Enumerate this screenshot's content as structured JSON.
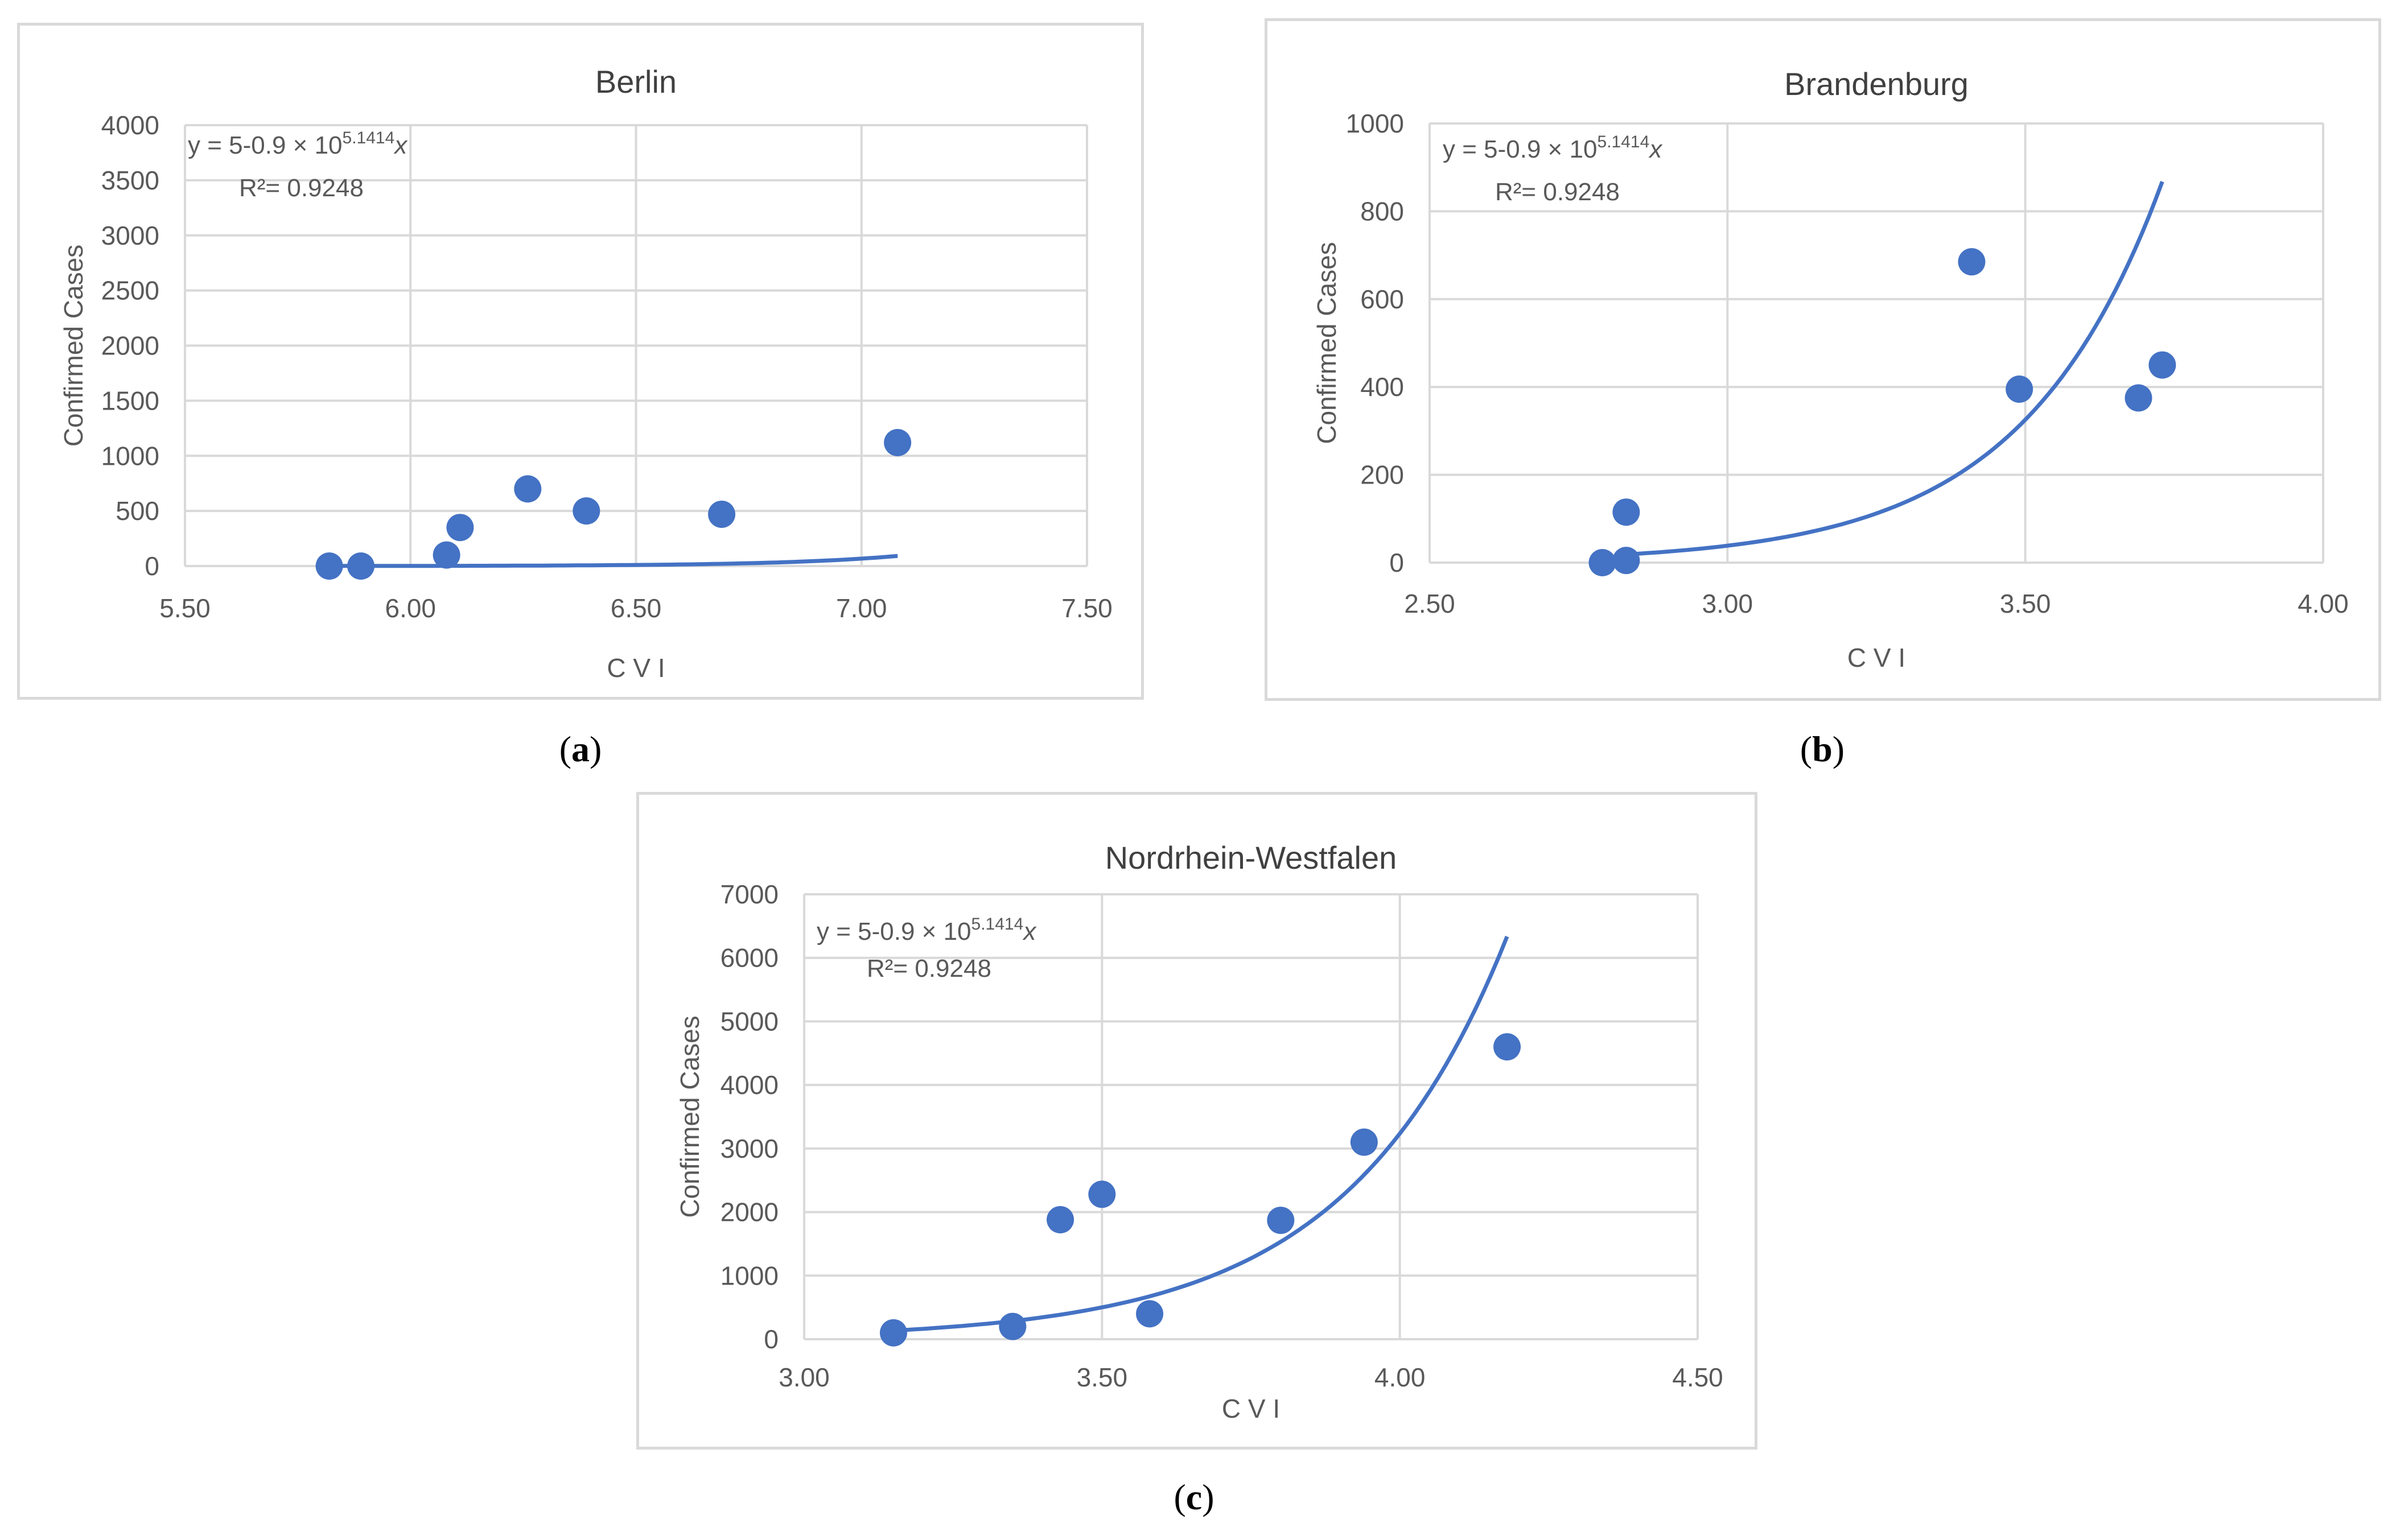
{
  "colors": {
    "series": "#4472c4",
    "grid": "#d9d9d9",
    "text": "#595959",
    "title": "#404040"
  },
  "captions": [
    "a",
    "b",
    "c"
  ],
  "chart_data": [
    {
      "type": "scatter",
      "title": "Berlin",
      "xlabel": "C V I",
      "ylabel": "Confirmed Cases",
      "xlim": [
        5.5,
        7.5
      ],
      "ylim": [
        0,
        4000
      ],
      "xticks": [
        "5.50",
        "6.00",
        "6.50",
        "7.00",
        "7.50"
      ],
      "yticks": [
        "0",
        "500",
        "1000",
        "1500",
        "2000",
        "2500",
        "3000",
        "3500",
        "4000"
      ],
      "equation": {
        "base": "y = 5-0.9 × 10",
        "exp": "5.1414",
        "var": "x",
        "r2": "R²= 0.9248"
      },
      "points": [
        [
          5.82,
          0
        ],
        [
          5.89,
          0
        ],
        [
          6.08,
          100
        ],
        [
          6.11,
          350
        ],
        [
          6.26,
          700
        ],
        [
          6.39,
          500
        ],
        [
          6.69,
          470
        ],
        [
          7.08,
          1120
        ]
      ],
      "trend": {
        "a": 1.2e-10,
        "b": 3.865,
        "x0": 5.82,
        "x1": 7.08
      }
    },
    {
      "type": "scatter",
      "title": "Brandenburg",
      "xlabel": "C V I",
      "ylabel": "Confirmed Cases",
      "xlim": [
        2.5,
        4.0
      ],
      "ylim": [
        0,
        1000
      ],
      "xticks": [
        "2.50",
        "3.00",
        "3.50",
        "4.00"
      ],
      "yticks": [
        "0",
        "200",
        "400",
        "600",
        "800",
        "1000"
      ],
      "equation": {
        "base": "y = 5-0.9 × 10",
        "exp": "5.1414",
        "var": "x",
        "r2": "R²= 0.9248"
      },
      "points": [
        [
          2.79,
          0
        ],
        [
          2.83,
          5
        ],
        [
          2.83,
          115
        ],
        [
          3.41,
          685
        ],
        [
          3.49,
          395
        ],
        [
          3.69,
          375
        ],
        [
          3.73,
          450
        ]
      ],
      "trend": {
        "a": 0.000107,
        "b": 4.265,
        "x0": 2.83,
        "x1": 3.73
      }
    },
    {
      "type": "scatter",
      "title": "Nordrhein-Westfalen",
      "xlabel": "C V I",
      "ylabel": "Confirmed Cases",
      "xlim": [
        3.0,
        4.5
      ],
      "ylim": [
        0,
        7000
      ],
      "xticks": [
        "3.00",
        "3.50",
        "4.00",
        "4.50"
      ],
      "yticks": [
        "0",
        "1000",
        "2000",
        "3000",
        "4000",
        "5000",
        "6000",
        "7000"
      ],
      "equation": {
        "base": "y = 5-0.9 × 10",
        "exp": "5.1414",
        "var": "x",
        "r2": "R²= 0.9248"
      },
      "points": [
        [
          3.15,
          100
        ],
        [
          3.35,
          200
        ],
        [
          3.43,
          1880
        ],
        [
          3.5,
          2280
        ],
        [
          3.58,
          400
        ],
        [
          3.8,
          1870
        ],
        [
          3.94,
          3100
        ],
        [
          4.18,
          4600
        ]
      ],
      "trend": {
        "a": 0.001055,
        "b": 3.734,
        "x0": 3.15,
        "x1": 4.18
      }
    }
  ]
}
